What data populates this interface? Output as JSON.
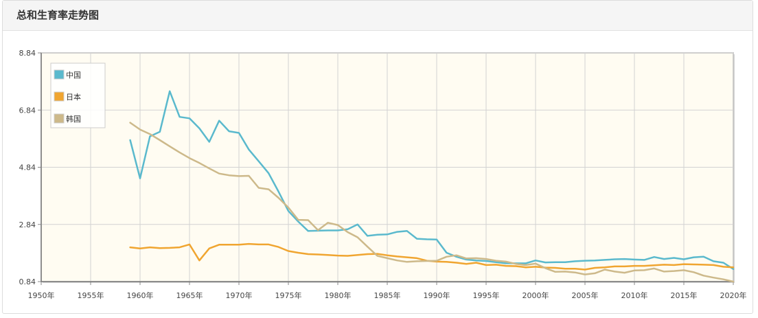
{
  "header": {
    "title": "总和生育率走势图"
  },
  "chart_data": {
    "type": "line",
    "title": "总和生育率走势图",
    "xlabel": "",
    "ylabel": "",
    "xlim": [
      1950,
      2020
    ],
    "ylim": [
      0.84,
      8.84
    ],
    "y_ticks": [
      0.84,
      2.84,
      4.84,
      6.84,
      8.84
    ],
    "y_tick_labels": [
      "0.84",
      "2.84",
      "4.84",
      "6.84",
      "8.84"
    ],
    "x_ticks": [
      1950,
      1955,
      1960,
      1965,
      1970,
      1975,
      1980,
      1985,
      1990,
      1995,
      2000,
      2005,
      2010,
      2015,
      2020
    ],
    "x_tick_labels": [
      "1950年",
      "1955年",
      "1960年",
      "1965年",
      "1970年",
      "1975年",
      "1980年",
      "1985年",
      "1990年",
      "1995年",
      "2000年",
      "2005年",
      "2010年",
      "2015年",
      "2020年"
    ],
    "grid": true,
    "legend_position": "top-left",
    "x": [
      1959,
      1960,
      1961,
      1962,
      1963,
      1964,
      1965,
      1966,
      1967,
      1968,
      1969,
      1970,
      1971,
      1972,
      1973,
      1974,
      1975,
      1976,
      1977,
      1978,
      1979,
      1980,
      1981,
      1982,
      1983,
      1984,
      1985,
      1986,
      1987,
      1988,
      1989,
      1990,
      1991,
      1992,
      1993,
      1994,
      1995,
      1996,
      1997,
      1998,
      1999,
      2000,
      2001,
      2002,
      2003,
      2004,
      2005,
      2006,
      2007,
      2008,
      2009,
      2010,
      2011,
      2012,
      2013,
      2014,
      2015,
      2016,
      2017,
      2018,
      2019,
      2020
    ],
    "series": [
      {
        "name": "中国",
        "color": "#5ab9cd",
        "values": [
          5.79,
          4.45,
          5.92,
          6.08,
          7.5,
          6.6,
          6.55,
          6.2,
          5.73,
          6.47,
          6.1,
          6.04,
          5.46,
          5.05,
          4.63,
          3.99,
          3.31,
          2.94,
          2.61,
          2.62,
          2.63,
          2.63,
          2.67,
          2.84,
          2.44,
          2.48,
          2.49,
          2.58,
          2.61,
          2.34,
          2.32,
          2.31,
          1.85,
          1.71,
          1.61,
          1.58,
          1.56,
          1.52,
          1.48,
          1.48,
          1.48,
          1.58,
          1.51,
          1.52,
          1.52,
          1.55,
          1.57,
          1.58,
          1.6,
          1.62,
          1.63,
          1.61,
          1.6,
          1.7,
          1.63,
          1.67,
          1.62,
          1.69,
          1.71,
          1.55,
          1.5,
          1.28
        ]
      },
      {
        "name": "日本",
        "color": "#f0a530",
        "values": [
          2.04,
          2.0,
          2.04,
          2.01,
          2.02,
          2.04,
          2.14,
          1.58,
          2.0,
          2.13,
          2.13,
          2.13,
          2.16,
          2.14,
          2.14,
          2.05,
          1.91,
          1.85,
          1.8,
          1.79,
          1.77,
          1.75,
          1.74,
          1.77,
          1.8,
          1.81,
          1.76,
          1.72,
          1.69,
          1.66,
          1.57,
          1.54,
          1.53,
          1.5,
          1.46,
          1.5,
          1.42,
          1.43,
          1.39,
          1.38,
          1.34,
          1.36,
          1.33,
          1.32,
          1.29,
          1.29,
          1.26,
          1.32,
          1.34,
          1.37,
          1.37,
          1.39,
          1.39,
          1.41,
          1.43,
          1.42,
          1.45,
          1.44,
          1.43,
          1.42,
          1.36,
          1.34
        ]
      },
      {
        "name": "韩国",
        "color": "#cdb98a",
        "values": [
          6.4,
          6.16,
          6.0,
          5.79,
          5.57,
          5.36,
          5.16,
          4.99,
          4.8,
          4.62,
          4.56,
          4.53,
          4.54,
          4.12,
          4.07,
          3.77,
          3.43,
          3.0,
          2.99,
          2.64,
          2.9,
          2.82,
          2.57,
          2.39,
          2.06,
          1.74,
          1.66,
          1.58,
          1.53,
          1.55,
          1.56,
          1.57,
          1.71,
          1.76,
          1.65,
          1.66,
          1.63,
          1.57,
          1.54,
          1.46,
          1.42,
          1.47,
          1.31,
          1.18,
          1.19,
          1.16,
          1.09,
          1.13,
          1.26,
          1.19,
          1.15,
          1.23,
          1.24,
          1.3,
          1.19,
          1.21,
          1.24,
          1.17,
          1.05,
          0.98,
          0.92,
          0.84
        ]
      }
    ]
  }
}
